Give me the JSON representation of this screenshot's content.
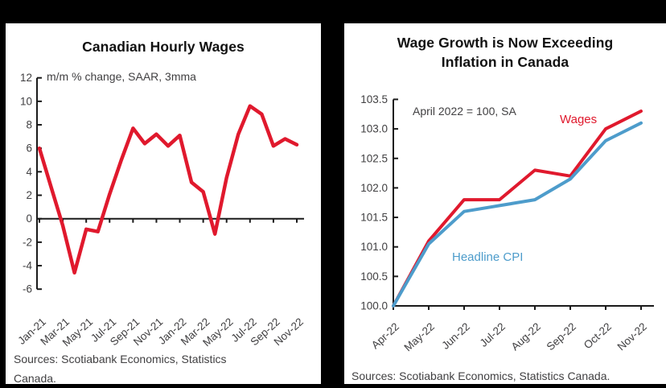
{
  "panels": {
    "left": {
      "title": "Canadian Hourly Wages",
      "subtitle": "m/m % change, SAAR, 3mma",
      "sources": "Sources: Scotiabank Economics, Statistics Canada."
    },
    "right": {
      "title_line1": "Wage Growth is Now Exceeding",
      "title_line2": "Inflation in Canada",
      "annotation": "April 2022 = 100, SA",
      "wages_label": "Wages",
      "cpi_label": "Headline CPI",
      "sources": "Sources: Scotiabank Economics, Statistics Canada."
    }
  },
  "colors": {
    "wage_red": "#e0192d",
    "cpi_blue": "#4d9ccb",
    "axis_black": "#1a1a1a",
    "label_gray": "#414042"
  },
  "chart_data": [
    {
      "type": "line",
      "title": "Canadian Hourly Wages",
      "subtitle": "m/m % change, SAAR, 3mma",
      "categories": [
        "Jan-21",
        "Feb-21",
        "Mar-21",
        "Apr-21",
        "May-21",
        "Jun-21",
        "Jul-21",
        "Aug-21",
        "Sep-21",
        "Oct-21",
        "Nov-21",
        "Dec-21",
        "Jan-22",
        "Feb-22",
        "Mar-22",
        "Apr-22",
        "May-22",
        "Jun-22",
        "Jul-22",
        "Aug-22",
        "Sep-22",
        "Oct-22",
        "Nov-22"
      ],
      "x_tick_labels": [
        "Jan-21",
        "Mar-21",
        "May-21",
        "Jul-21",
        "Sep-21",
        "Nov-21",
        "Jan-22",
        "Mar-22",
        "May-22",
        "Jul-22",
        "Sep-22",
        "Nov-22"
      ],
      "ylim": [
        -6,
        12
      ],
      "ytick_step": 2,
      "grid": false,
      "legend_position": "none",
      "series": [
        {
          "name": "Hourly wages",
          "color": "#e0192d",
          "values": [
            6.0,
            2.7,
            -0.6,
            -4.6,
            -0.9,
            -1.1,
            2.1,
            5.0,
            7.7,
            6.4,
            7.2,
            6.2,
            7.1,
            3.1,
            2.3,
            -1.3,
            3.5,
            7.2,
            9.6,
            8.9,
            6.2,
            6.8,
            6.3
          ]
        }
      ]
    },
    {
      "type": "line",
      "title": "Wage Growth is Now Exceeding Inflation in Canada",
      "annotation": "April 2022 = 100, SA",
      "categories": [
        "Apr-22",
        "May-22",
        "Jun-22",
        "Jul-22",
        "Aug-22",
        "Sep-22",
        "Oct-22",
        "Nov-22"
      ],
      "x_tick_labels": [
        "Apr-22",
        "May-22",
        "Jun-22",
        "Jul-22",
        "Aug-22",
        "Sep-22",
        "Oct-22",
        "Nov-22"
      ],
      "ylim": [
        100,
        103.5
      ],
      "ytick_step": 0.5,
      "grid": false,
      "legend_position": "inline",
      "series": [
        {
          "name": "Wages",
          "color": "#e0192d",
          "values": [
            100.0,
            101.1,
            101.8,
            101.8,
            102.3,
            102.2,
            103.0,
            103.3
          ]
        },
        {
          "name": "Headline CPI",
          "color": "#4d9ccb",
          "values": [
            100.0,
            101.05,
            101.6,
            101.7,
            101.8,
            102.15,
            102.8,
            103.1
          ]
        }
      ]
    }
  ]
}
